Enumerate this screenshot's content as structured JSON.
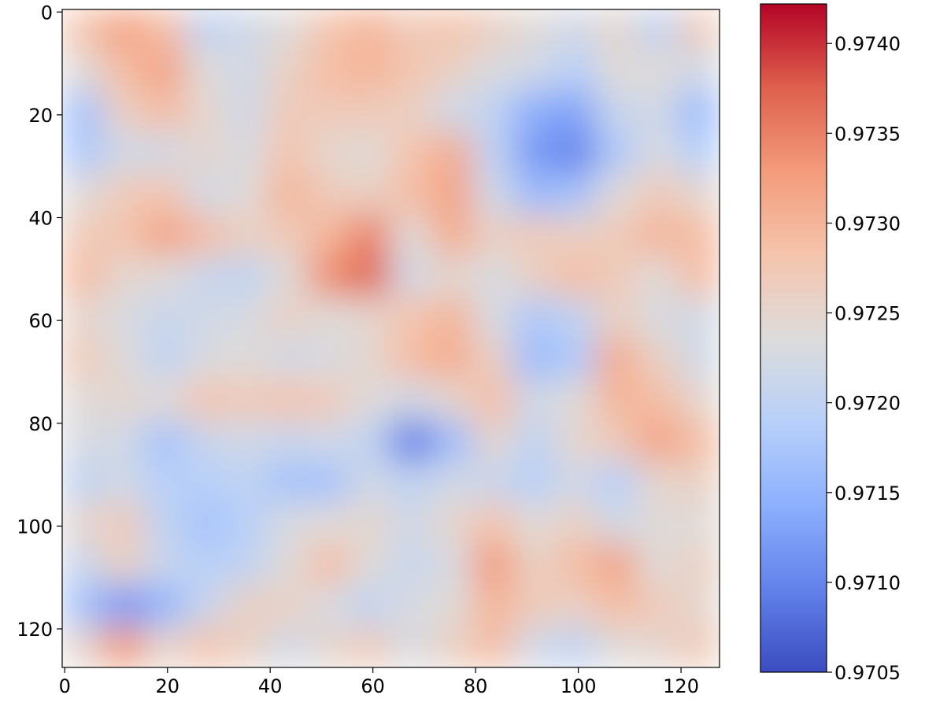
{
  "chart_data": {
    "type": "heatmap",
    "x": [
      3.5,
      11.5,
      19.5,
      27.5,
      35.5,
      43.5,
      51.5,
      59.5,
      67.5,
      75.5,
      83.5,
      91.5,
      99.5,
      107.5,
      115.5,
      123.5
    ],
    "y": [
      3.5,
      11.5,
      19.5,
      27.5,
      35.5,
      43.5,
      51.5,
      59.5,
      67.5,
      75.5,
      83.5,
      91.5,
      99.5,
      107.5,
      115.5,
      123.5
    ],
    "z": [
      [
        0.9728,
        0.9732,
        0.9729,
        0.972,
        0.9722,
        0.9724,
        0.9728,
        0.973,
        0.9727,
        0.9728,
        0.9726,
        0.9724,
        0.9722,
        0.9725,
        0.972,
        0.9727
      ],
      [
        0.9724,
        0.9729,
        0.9732,
        0.9724,
        0.9722,
        0.9726,
        0.9729,
        0.973,
        0.9728,
        0.9726,
        0.9723,
        0.9722,
        0.9719,
        0.9724,
        0.9724,
        0.9722
      ],
      [
        0.9717,
        0.9726,
        0.9729,
        0.9725,
        0.9722,
        0.9727,
        0.9727,
        0.9727,
        0.9726,
        0.9722,
        0.972,
        0.9714,
        0.9713,
        0.9721,
        0.9722,
        0.9716
      ],
      [
        0.9718,
        0.9722,
        0.9722,
        0.9725,
        0.9723,
        0.9728,
        0.9725,
        0.9724,
        0.9728,
        0.9731,
        0.972,
        0.9712,
        0.971,
        0.9718,
        0.9723,
        0.9719
      ],
      [
        0.9724,
        0.9727,
        0.9728,
        0.9722,
        0.9724,
        0.973,
        0.9727,
        0.9726,
        0.9729,
        0.9732,
        0.9722,
        0.9716,
        0.9717,
        0.9724,
        0.9727,
        0.9725
      ],
      [
        0.9727,
        0.9728,
        0.9732,
        0.9729,
        0.9726,
        0.9727,
        0.973,
        0.9735,
        0.9724,
        0.9731,
        0.9726,
        0.9727,
        0.9726,
        0.9727,
        0.973,
        0.9729
      ],
      [
        0.9729,
        0.9725,
        0.9724,
        0.9721,
        0.972,
        0.9724,
        0.9734,
        0.9737,
        0.9722,
        0.9725,
        0.9723,
        0.9726,
        0.9729,
        0.9727,
        0.9724,
        0.9729
      ],
      [
        0.9725,
        0.9723,
        0.9721,
        0.9722,
        0.9723,
        0.9726,
        0.9724,
        0.9725,
        0.9728,
        0.973,
        0.9723,
        0.9718,
        0.972,
        0.9726,
        0.9723,
        0.9722
      ],
      [
        0.9727,
        0.9724,
        0.972,
        0.9723,
        0.9724,
        0.9722,
        0.9723,
        0.9725,
        0.9729,
        0.9731,
        0.9726,
        0.9716,
        0.9718,
        0.9731,
        0.9726,
        0.9722
      ],
      [
        0.9724,
        0.9725,
        0.9724,
        0.9728,
        0.9727,
        0.9728,
        0.9727,
        0.9724,
        0.9722,
        0.9725,
        0.9729,
        0.9722,
        0.9724,
        0.973,
        0.9729,
        0.9725
      ],
      [
        0.9723,
        0.9722,
        0.9717,
        0.9721,
        0.9722,
        0.9721,
        0.9722,
        0.972,
        0.9709,
        0.9716,
        0.9725,
        0.972,
        0.9725,
        0.9727,
        0.9732,
        0.9729
      ],
      [
        0.972,
        0.9722,
        0.9719,
        0.9719,
        0.972,
        0.9717,
        0.9717,
        0.9722,
        0.972,
        0.9722,
        0.9721,
        0.9719,
        0.9722,
        0.9719,
        0.9725,
        0.9726
      ],
      [
        0.9725,
        0.9727,
        0.972,
        0.9717,
        0.9719,
        0.9723,
        0.9724,
        0.9725,
        0.9722,
        0.9725,
        0.9728,
        0.9724,
        0.9726,
        0.9722,
        0.9724,
        0.9724
      ],
      [
        0.9721,
        0.9726,
        0.9721,
        0.9719,
        0.972,
        0.9724,
        0.9729,
        0.9724,
        0.9721,
        0.9723,
        0.9733,
        0.9726,
        0.9729,
        0.9732,
        0.9724,
        0.9726
      ],
      [
        0.9717,
        0.9712,
        0.9715,
        0.9721,
        0.9726,
        0.9726,
        0.9723,
        0.972,
        0.9723,
        0.9724,
        0.973,
        0.9727,
        0.9726,
        0.9729,
        0.9727,
        0.9725
      ],
      [
        0.9725,
        0.9733,
        0.9725,
        0.9728,
        0.9726,
        0.9722,
        0.9725,
        0.9727,
        0.9723,
        0.9726,
        0.9729,
        0.9722,
        0.972,
        0.9724,
        0.9725,
        0.9727
      ]
    ],
    "xlim": [
      -0.5,
      127.5
    ],
    "ylim": [
      127.5,
      -0.5
    ],
    "xticks": [
      0,
      20,
      40,
      60,
      80,
      100,
      120
    ],
    "yticks": [
      0,
      20,
      40,
      60,
      80,
      100,
      120
    ],
    "clim": [
      0.9705,
      0.97422
    ],
    "cticks": [
      0.9705,
      {
        "value": 0.971,
        "label": "0.9710"
      },
      0.9715,
      {
        "value": 0.972,
        "label": "0.9720"
      },
      0.9725,
      {
        "value": 0.973,
        "label": "0.9730"
      },
      0.9735,
      {
        "value": 0.974,
        "label": "0.9740"
      }
    ],
    "cmap": [
      "#3b4cc0",
      "#6282ea",
      "#8db0fe",
      "#b8d0f9",
      "#dddcdc",
      "#f5c4ac",
      "#f39b7a",
      "#de604d",
      "#b40426"
    ]
  }
}
